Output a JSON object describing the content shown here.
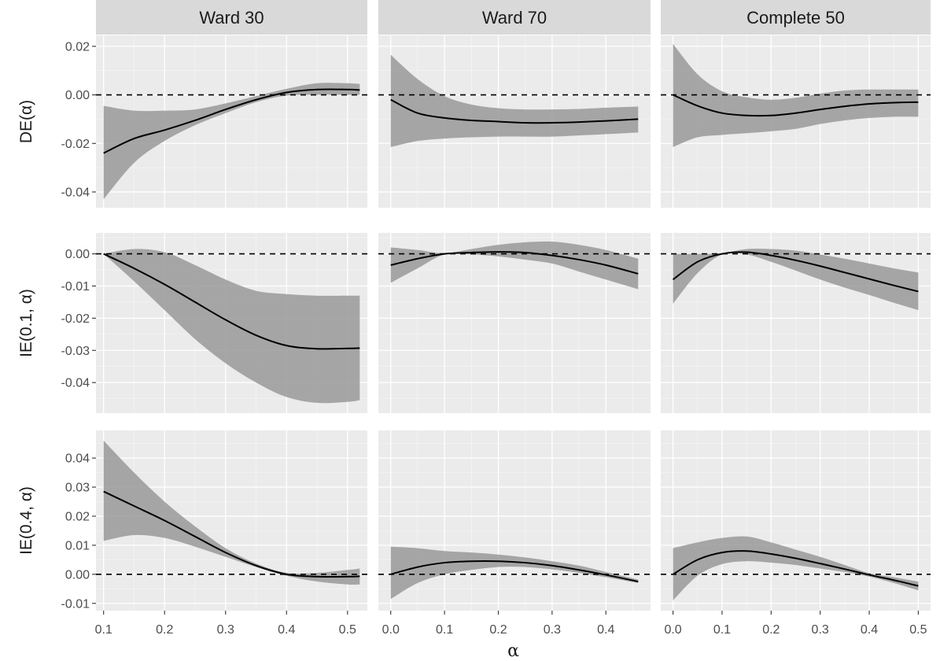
{
  "chart_data": {
    "type": "line",
    "columns": [
      "Ward 30",
      "Ward 70",
      "Complete 50"
    ],
    "rows": [
      "DE(α)",
      "IE(0.1, α)",
      "IE(0.4, α)"
    ],
    "xlabel": "α",
    "x_ticks": [
      [
        "0.1",
        "0.2",
        "0.3",
        "0.4",
        "0.5"
      ],
      [
        "0.0",
        "0.1",
        "0.2",
        "0.3",
        "0.4"
      ],
      [
        "0.0",
        "0.1",
        "0.2",
        "0.3",
        "0.4",
        "0.5"
      ]
    ],
    "x_tick_values": [
      [
        0.1,
        0.2,
        0.3,
        0.4,
        0.5
      ],
      [
        0.0,
        0.1,
        0.2,
        0.3,
        0.4
      ],
      [
        0.0,
        0.1,
        0.2,
        0.3,
        0.4,
        0.5
      ]
    ],
    "xlim": [
      [
        0.0875,
        0.5325
      ],
      [
        -0.023,
        0.483
      ],
      [
        -0.025,
        0.525
      ]
    ],
    "y_ticks": [
      [
        "0.02",
        "0.00",
        "-0.02",
        "-0.04"
      ],
      [
        "0.00",
        "-0.01",
        "-0.02",
        "-0.03",
        "-0.04"
      ],
      [
        "0.04",
        "0.03",
        "0.02",
        "0.01",
        "0.00",
        "-0.01"
      ]
    ],
    "y_tick_values": [
      [
        0.02,
        0.0,
        -0.02,
        -0.04
      ],
      [
        0.0,
        -0.01,
        -0.02,
        -0.03,
        -0.04
      ],
      [
        0.04,
        0.03,
        0.02,
        0.01,
        0.0,
        -0.01
      ]
    ],
    "ylim": [
      [
        -0.0465,
        0.0245
      ],
      [
        -0.0495,
        0.0065
      ],
      [
        -0.0125,
        0.0495
      ]
    ],
    "reference_line": {
      "y": 0,
      "style": "dashed"
    },
    "panels": [
      {
        "row": 0,
        "col": 0,
        "x": [
          0.1,
          0.15,
          0.2,
          0.25,
          0.3,
          0.35,
          0.4,
          0.45,
          0.5,
          0.52
        ],
        "estimate": [
          -0.024,
          -0.018,
          -0.0145,
          -0.0105,
          -0.006,
          -0.002,
          0.001,
          0.0022,
          0.0022,
          0.002
        ],
        "lower": [
          -0.043,
          -0.028,
          -0.019,
          -0.0125,
          -0.0075,
          -0.003,
          -0.0003,
          0.0,
          0.0,
          0.0
        ],
        "upper": [
          -0.0045,
          -0.0065,
          -0.0065,
          -0.006,
          -0.0035,
          -0.0005,
          0.0025,
          0.0048,
          0.0048,
          0.0045
        ]
      },
      {
        "row": 0,
        "col": 1,
        "x": [
          0.0,
          0.05,
          0.1,
          0.15,
          0.2,
          0.25,
          0.3,
          0.35,
          0.4,
          0.46
        ],
        "estimate": [
          -0.002,
          -0.0075,
          -0.0095,
          -0.0105,
          -0.011,
          -0.0115,
          -0.0115,
          -0.0112,
          -0.0107,
          -0.01
        ],
        "lower": [
          -0.0215,
          -0.019,
          -0.018,
          -0.0175,
          -0.0172,
          -0.0172,
          -0.0172,
          -0.0167,
          -0.0162,
          -0.0155
        ],
        "upper": [
          0.0165,
          0.0065,
          -0.0005,
          -0.004,
          -0.0055,
          -0.006,
          -0.006,
          -0.0058,
          -0.0053,
          -0.0048
        ]
      },
      {
        "row": 0,
        "col": 2,
        "x": [
          0.0,
          0.05,
          0.1,
          0.15,
          0.2,
          0.25,
          0.3,
          0.35,
          0.4,
          0.45,
          0.5
        ],
        "estimate": [
          0.0,
          -0.0045,
          -0.0075,
          -0.0085,
          -0.0085,
          -0.0075,
          -0.006,
          -0.0047,
          -0.0037,
          -0.0032,
          -0.003
        ],
        "lower": [
          -0.0215,
          -0.0175,
          -0.0165,
          -0.0158,
          -0.015,
          -0.014,
          -0.012,
          -0.0105,
          -0.0095,
          -0.009,
          -0.009
        ],
        "upper": [
          0.021,
          0.0085,
          0.0015,
          -0.001,
          -0.002,
          -0.0012,
          0.0005,
          0.0018,
          0.0022,
          0.0022,
          0.0022
        ]
      },
      {
        "row": 1,
        "col": 0,
        "x": [
          0.1,
          0.15,
          0.2,
          0.25,
          0.3,
          0.35,
          0.4,
          0.45,
          0.5,
          0.52
        ],
        "estimate": [
          0.0,
          -0.0045,
          -0.0095,
          -0.015,
          -0.0205,
          -0.0253,
          -0.0285,
          -0.0295,
          -0.0294,
          -0.0293
        ],
        "lower": [
          0.0,
          -0.0085,
          -0.0175,
          -0.0265,
          -0.034,
          -0.04,
          -0.0445,
          -0.0463,
          -0.046,
          -0.0455
        ],
        "upper": [
          0.0,
          0.0015,
          0.0005,
          -0.0035,
          -0.008,
          -0.0115,
          -0.0125,
          -0.013,
          -0.013,
          -0.013
        ]
      },
      {
        "row": 1,
        "col": 1,
        "x": [
          0.0,
          0.05,
          0.1,
          0.15,
          0.2,
          0.25,
          0.3,
          0.35,
          0.4,
          0.46
        ],
        "estimate": [
          -0.0035,
          -0.0015,
          0.0,
          0.0004,
          0.0006,
          0.0004,
          -0.0005,
          -0.0018,
          -0.0035,
          -0.0062
        ],
        "lower": [
          -0.009,
          -0.0045,
          -0.0002,
          -0.0002,
          -0.0008,
          -0.0018,
          -0.003,
          -0.0055,
          -0.008,
          -0.011
        ],
        "upper": [
          0.002,
          0.0012,
          0.0002,
          0.0015,
          0.0028,
          0.0036,
          0.0038,
          0.0028,
          0.0012,
          -0.0015
        ]
      },
      {
        "row": 1,
        "col": 2,
        "x": [
          0.0,
          0.05,
          0.1,
          0.15,
          0.2,
          0.25,
          0.3,
          0.35,
          0.4,
          0.45,
          0.5
        ],
        "estimate": [
          -0.008,
          -0.0025,
          0.0,
          0.0005,
          -0.0005,
          -0.002,
          -0.0038,
          -0.0058,
          -0.0078,
          -0.0098,
          -0.0117
        ],
        "lower": [
          -0.0155,
          -0.006,
          -0.0002,
          -0.0002,
          -0.0025,
          -0.0052,
          -0.008,
          -0.0105,
          -0.0128,
          -0.0152,
          -0.0175
        ],
        "upper": [
          0.0,
          0.0,
          0.0002,
          0.0015,
          0.0015,
          0.001,
          -0.0002,
          -0.0015,
          -0.003,
          -0.0045,
          -0.0058
        ]
      },
      {
        "row": 2,
        "col": 0,
        "x": [
          0.1,
          0.15,
          0.2,
          0.25,
          0.3,
          0.35,
          0.4,
          0.45,
          0.5,
          0.52
        ],
        "estimate": [
          0.0285,
          0.0235,
          0.0185,
          0.013,
          0.0075,
          0.003,
          0.0,
          -0.0008,
          -0.0008,
          -0.0007
        ],
        "lower": [
          0.0115,
          0.0135,
          0.0125,
          0.0095,
          0.006,
          0.0025,
          -0.0005,
          -0.0025,
          -0.0035,
          -0.0035
        ],
        "upper": [
          0.046,
          0.035,
          0.025,
          0.0165,
          0.009,
          0.0037,
          0.0005,
          0.0005,
          0.0015,
          0.002
        ]
      },
      {
        "row": 2,
        "col": 1,
        "x": [
          0.0,
          0.05,
          0.1,
          0.15,
          0.2,
          0.25,
          0.3,
          0.35,
          0.4,
          0.46
        ],
        "estimate": [
          0.0,
          0.0025,
          0.004,
          0.0045,
          0.0045,
          0.004,
          0.003,
          0.0015,
          -0.0002,
          -0.0025
        ],
        "lower": [
          -0.0085,
          -0.003,
          0.0,
          0.0015,
          0.0025,
          0.0025,
          0.0017,
          0.0005,
          -0.001,
          -0.003
        ],
        "upper": [
          0.0095,
          0.009,
          0.008,
          0.0075,
          0.0068,
          0.0058,
          0.0045,
          0.003,
          0.0008,
          -0.0018
        ]
      },
      {
        "row": 2,
        "col": 2,
        "x": [
          0.0,
          0.05,
          0.1,
          0.15,
          0.2,
          0.25,
          0.3,
          0.35,
          0.4,
          0.45,
          0.5
        ],
        "estimate": [
          0.0,
          0.005,
          0.0075,
          0.008,
          0.007,
          0.0055,
          0.0037,
          0.0018,
          -0.0002,
          -0.002,
          -0.004
        ],
        "lower": [
          -0.009,
          -0.0005,
          0.0035,
          0.0045,
          0.004,
          0.0032,
          0.002,
          0.0008,
          -0.0008,
          -0.003,
          -0.0055
        ],
        "upper": [
          0.009,
          0.011,
          0.0125,
          0.013,
          0.011,
          0.0085,
          0.006,
          0.0032,
          0.0004,
          -0.001,
          -0.0025
        ]
      }
    ]
  }
}
